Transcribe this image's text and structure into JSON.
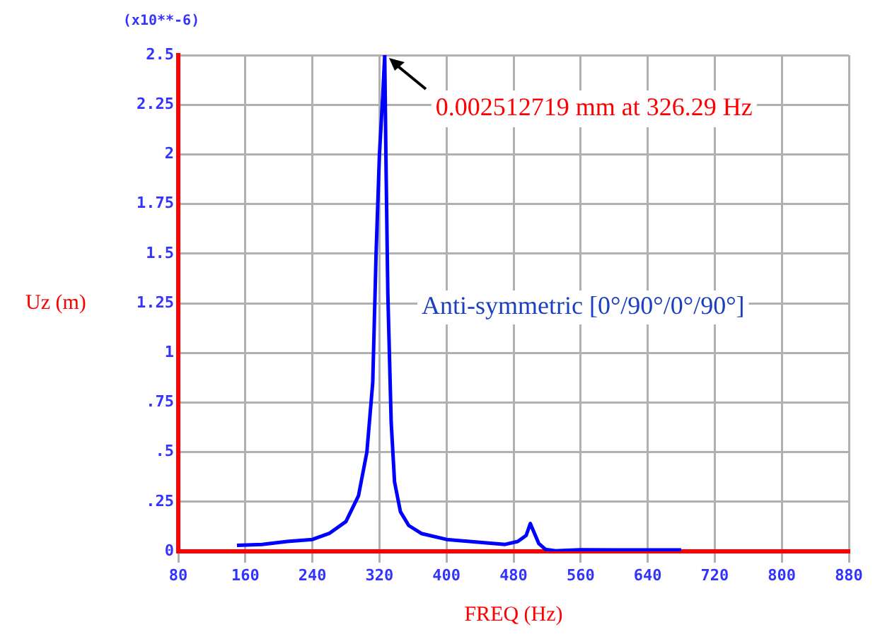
{
  "chart_data": {
    "type": "line",
    "xlabel": "FREQ (Hz)",
    "ylabel": "Uz (m)",
    "x": [
      150,
      180,
      210,
      240,
      260,
      280,
      295,
      305,
      312,
      316,
      320,
      324,
      326.29,
      328,
      330,
      334,
      338,
      345,
      355,
      370,
      400,
      440,
      470,
      485,
      495,
      500,
      504,
      510,
      518,
      530,
      560,
      600,
      640,
      680
    ],
    "series": [
      {
        "color": "#0000ff",
        "values": [
          0.03,
          0.035,
          0.05,
          0.06,
          0.09,
          0.15,
          0.28,
          0.5,
          0.85,
          1.5,
          2.0,
          2.3,
          2.5,
          1.9,
          1.3,
          0.65,
          0.35,
          0.2,
          0.13,
          0.09,
          0.06,
          0.045,
          0.035,
          0.05,
          0.08,
          0.14,
          0.1,
          0.04,
          0.01,
          0.003,
          0.008,
          0.007,
          0.007,
          0.007
        ]
      }
    ],
    "xlim": [
      80,
      880
    ],
    "xticks": [
      80,
      160,
      240,
      320,
      400,
      480,
      560,
      640,
      720,
      800,
      880
    ],
    "ylim": [
      0,
      2.5
    ],
    "yticks": [
      0,
      {
        "value": 0.25,
        "label": ".25"
      },
      {
        "value": 0.5,
        "label": ".5"
      },
      {
        "value": 0.75,
        "label": ".75"
      },
      1,
      1.25,
      1.5,
      1.75,
      2,
      2.25,
      2.5
    ],
    "grid": true,
    "marker": "none",
    "line_style": "solid",
    "annotations": [
      "(x10**-6)",
      {
        "text": "0.002512719 mm at 326.29 Hz",
        "x": 326.29,
        "y": 2.5
      },
      "Anti-symmetric [0°/90°/0°/90°]"
    ]
  }
}
